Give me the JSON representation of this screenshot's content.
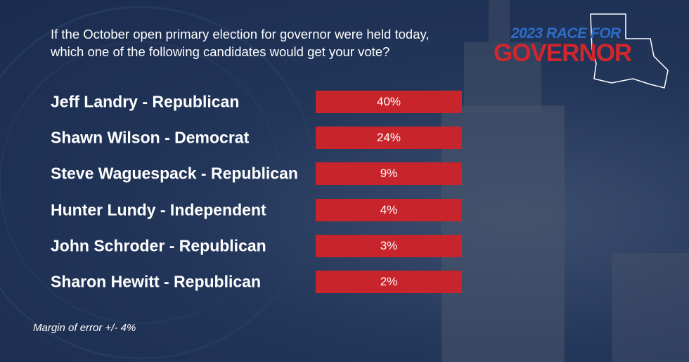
{
  "logo": {
    "line1": "2023 RACE FOR",
    "line2": "GOVERNOR"
  },
  "question": {
    "line1": "If the October open primary election for governor were held today,",
    "line2": "which one of the following candidates would get your vote?"
  },
  "rows": [
    {
      "candidate": "Jeff Landry - Republican",
      "result": "40%"
    },
    {
      "candidate": "Shawn Wilson - Democrat",
      "result": "24%"
    },
    {
      "candidate": "Steve Waguespack - Republican",
      "result": "9%"
    },
    {
      "candidate": "Hunter Lundy - Independent",
      "result": "4%"
    },
    {
      "candidate": "John Schroder - Republican",
      "result": "3%"
    },
    {
      "candidate": "Sharon Hewitt - Republican",
      "result": "2%"
    }
  ],
  "footnote": "Margin of error +/- 4%"
}
